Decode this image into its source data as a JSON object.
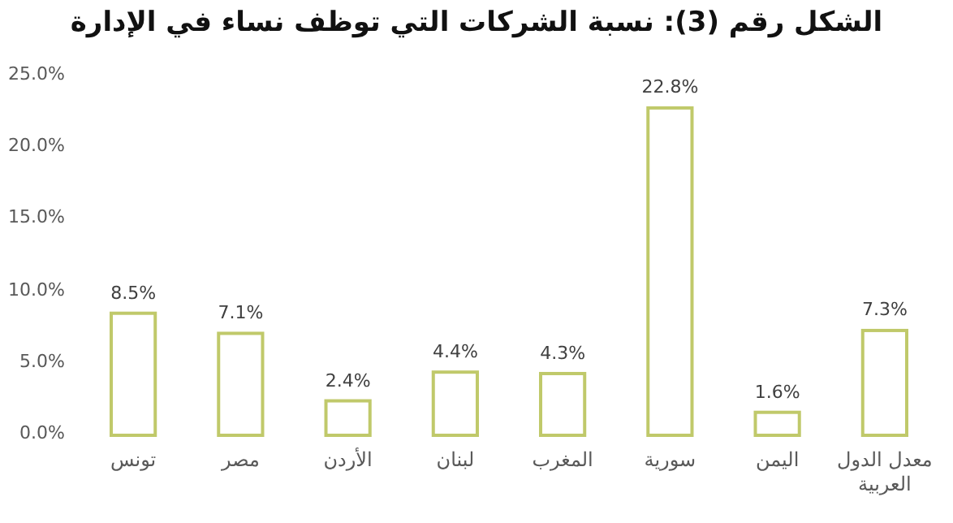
{
  "chart_data": {
    "type": "bar",
    "title": "الشكل رقم (3): نسبة الشركات التي توظف نساء في الإدارة",
    "categories": [
      "تونس",
      "مصر",
      "الأردن",
      "لبنان",
      "المغرب",
      "سورية",
      "اليمن",
      "معدل الدول العربية"
    ],
    "values": [
      8.5,
      7.1,
      2.4,
      4.4,
      4.3,
      22.8,
      1.6,
      7.3
    ],
    "value_labels": [
      "8.5%",
      "7.1%",
      "2.4%",
      "4.4%",
      "4.3%",
      "22.8%",
      "1.6%",
      "7.3%"
    ],
    "color": "#c0c96a",
    "ylim": [
      0,
      25
    ],
    "yticks": [
      {
        "value": 0,
        "label": "0.0%"
      },
      {
        "value": 5,
        "label": "5.0%"
      },
      {
        "value": 10,
        "label": "10.0%"
      },
      {
        "value": 15,
        "label": "15.0%"
      },
      {
        "value": 20,
        "label": "20.0%"
      },
      {
        "value": 25,
        "label": "25.0%"
      }
    ],
    "grid": false
  }
}
